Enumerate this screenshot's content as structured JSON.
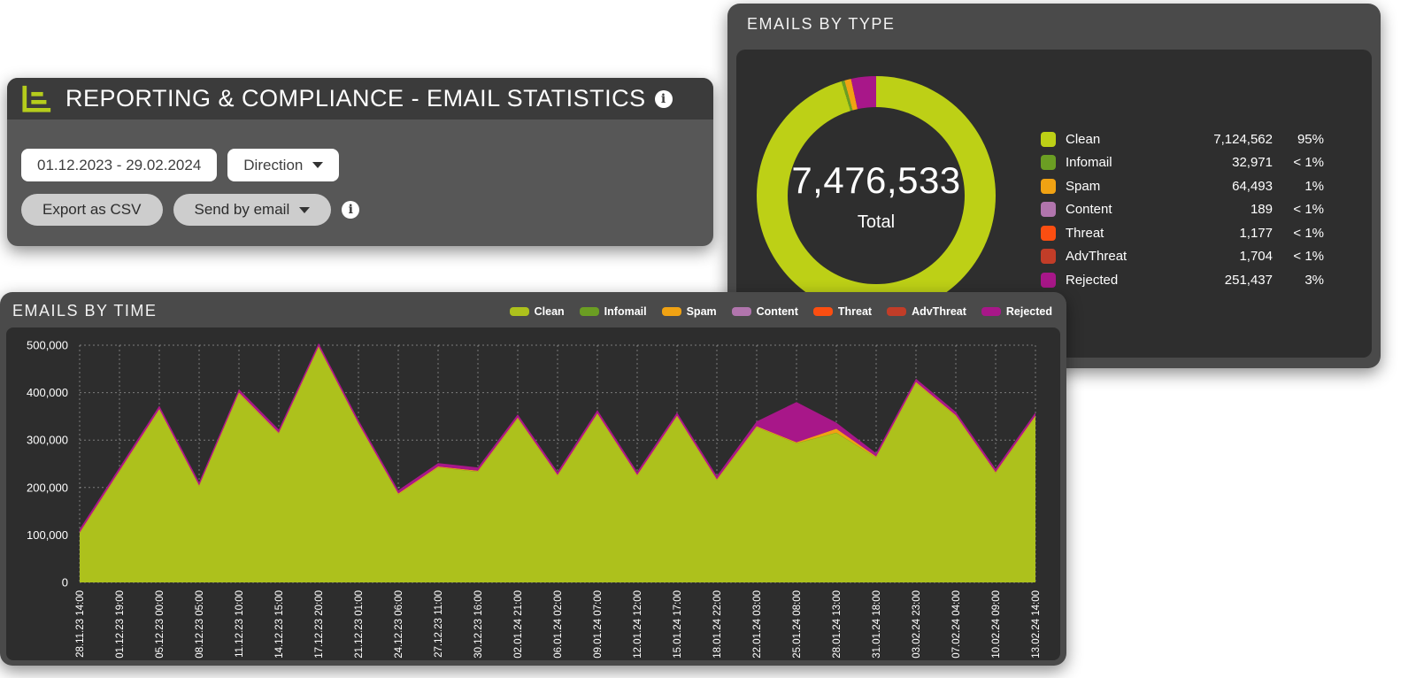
{
  "header": {
    "title": "REPORTING & COMPLIANCE - EMAIL STATISTICS",
    "date_range": "01.12.2023 - 29.02.2024",
    "direction_label": "Direction",
    "export_csv_label": "Export as CSV",
    "send_email_label": "Send by email",
    "info_glyph": "i"
  },
  "emails_by_type": {
    "title": "EMAILS BY TYPE",
    "total_value": "7,476,533",
    "total_label": "Total",
    "rows": [
      {
        "label": "Clean",
        "value": "7,124,562",
        "pct": "95%",
        "raw": 7124562,
        "color": "#bdd016"
      },
      {
        "label": "Infomail",
        "value": "32,971",
        "pct": "< 1%",
        "raw": 32971,
        "color": "#6b9e23"
      },
      {
        "label": "Spam",
        "value": "64,493",
        "pct": "1%",
        "raw": 64493,
        "color": "#f0a213"
      },
      {
        "label": "Content",
        "value": "189",
        "pct": "< 1%",
        "raw": 189,
        "color": "#b175ad"
      },
      {
        "label": "Threat",
        "value": "1,177",
        "pct": "< 1%",
        "raw": 1177,
        "color": "#fb4e11"
      },
      {
        "label": "AdvThreat",
        "value": "1,704",
        "pct": "< 1%",
        "raw": 1704,
        "color": "#c23d28"
      },
      {
        "label": "Rejected",
        "value": "251,437",
        "pct": "3%",
        "raw": 251437,
        "color": "#a81789"
      }
    ]
  },
  "emails_by_time": {
    "title": "EMAILS BY TIME"
  },
  "chart_data": [
    {
      "type": "pie",
      "donut": true,
      "title": "EMAILS BY TYPE",
      "labels": [
        "Clean",
        "Infomail",
        "Spam",
        "Content",
        "Threat",
        "AdvThreat",
        "Rejected"
      ],
      "values": [
        7124562,
        32971,
        64493,
        189,
        1177,
        1704,
        251437
      ],
      "percent_labels": [
        "95%",
        "< 1%",
        "1%",
        "< 1%",
        "< 1%",
        "< 1%",
        "3%"
      ],
      "colors": [
        "#bdd016",
        "#6b9e23",
        "#f0a213",
        "#b175ad",
        "#fb4e11",
        "#c23d28",
        "#a81789"
      ],
      "total": 7476533,
      "center_value": "7,476,533",
      "center_label": "Total",
      "legend_position": "right"
    },
    {
      "type": "area",
      "stacked": true,
      "title": "EMAILS BY TIME",
      "grid": true,
      "legend_position": "top-right",
      "ylim": [
        0,
        500000
      ],
      "yticks": [
        0,
        100000,
        200000,
        300000,
        400000,
        500000
      ],
      "values_estimated": true,
      "x": [
        "28.11.23 14:00",
        "01.12.23 19:00",
        "05.12.23 00:00",
        "08.12.23 05:00",
        "11.12.23 10:00",
        "14.12.23 15:00",
        "17.12.23 20:00",
        "21.12.23 01:00",
        "24.12.23 06:00",
        "27.12.23 11:00",
        "30.12.23 16:00",
        "02.01.24 21:00",
        "06.01.24 02:00",
        "09.01.24 07:00",
        "12.01.24 12:00",
        "15.01.24 17:00",
        "18.01.24 22:00",
        "22.01.24 03:00",
        "25.01.24 08:00",
        "28.01.24 13:00",
        "31.01.24 18:00",
        "03.02.24 23:00",
        "07.02.24 04:00",
        "10.02.24 09:00",
        "13.02.24 14:00"
      ],
      "series": [
        {
          "name": "Clean",
          "color": "#adc11c",
          "values": [
            103000,
            233000,
            363000,
            202000,
            398000,
            313000,
            495000,
            333000,
            185000,
            242000,
            233000,
            345000,
            224000,
            354000,
            224000,
            349000,
            215000,
            327000,
            293000,
            315000,
            263000,
            420000,
            350000,
            230000,
            349000
          ]
        },
        {
          "name": "Infomail",
          "color": "#6b9e23",
          "values": [
            500,
            500,
            500,
            500,
            500,
            500,
            500,
            500,
            500,
            500,
            500,
            500,
            500,
            500,
            500,
            500,
            500,
            500,
            500,
            500,
            500,
            500,
            500,
            500,
            500
          ]
        },
        {
          "name": "Spam",
          "color": "#f0a213",
          "values": [
            1500,
            1500,
            1500,
            1500,
            1500,
            1500,
            1500,
            1500,
            1500,
            1500,
            1500,
            1500,
            1500,
            1500,
            1500,
            1500,
            1500,
            1500,
            1500,
            8000,
            1500,
            1500,
            1500,
            1500,
            1500
          ]
        },
        {
          "name": "Content",
          "color": "#b175ad",
          "values": [
            50,
            50,
            50,
            50,
            50,
            50,
            50,
            50,
            50,
            50,
            50,
            50,
            50,
            50,
            50,
            50,
            50,
            50,
            50,
            50,
            50,
            50,
            50,
            50,
            50
          ]
        },
        {
          "name": "Threat",
          "color": "#fb4e11",
          "values": [
            100,
            100,
            100,
            100,
            100,
            100,
            100,
            100,
            100,
            100,
            100,
            100,
            100,
            100,
            100,
            100,
            100,
            100,
            100,
            100,
            100,
            100,
            100,
            100,
            100
          ]
        },
        {
          "name": "AdvThreat",
          "color": "#c23d28",
          "values": [
            150,
            150,
            150,
            150,
            150,
            150,
            150,
            150,
            150,
            150,
            150,
            150,
            150,
            150,
            150,
            150,
            150,
            150,
            150,
            150,
            150,
            150,
            150,
            150,
            150
          ]
        },
        {
          "name": "Rejected",
          "color": "#a81789",
          "values": [
            7000,
            7000,
            7000,
            7000,
            7000,
            7000,
            7000,
            7000,
            7000,
            7000,
            7000,
            7000,
            7000,
            7000,
            7000,
            7000,
            7000,
            10000,
            85000,
            13000,
            7000,
            7000,
            7000,
            7000,
            7000
          ]
        }
      ]
    }
  ]
}
